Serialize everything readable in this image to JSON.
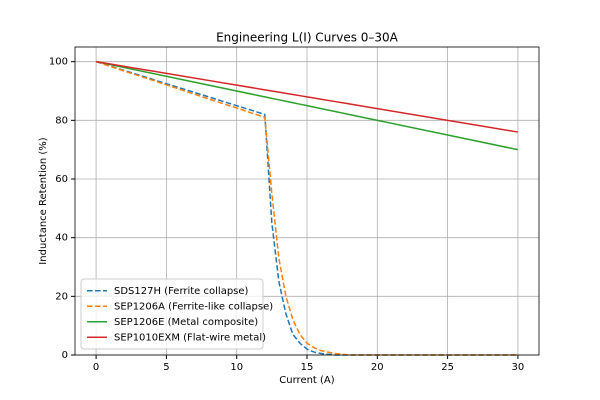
{
  "chart_data": {
    "type": "line",
    "title": "Engineering L(I) Curves 0–30A",
    "x_label": "Current (A)",
    "y_label": "Inductance Retention (%)",
    "x": [
      0,
      2,
      4,
      6,
      8,
      10,
      12,
      12.5,
      13,
      13.5,
      14,
      14.5,
      15,
      15.5,
      16,
      17,
      18,
      20,
      25,
      30
    ],
    "series": [
      {
        "name": "SDS127H (Ferrite collapse)",
        "color": "#1f77b4",
        "linestyle": "dashed",
        "values": [
          100,
          97,
          94,
          91,
          88,
          85,
          82,
          45,
          25,
          14,
          7,
          4,
          2,
          1,
          0.5,
          0,
          0,
          0,
          0,
          0
        ]
      },
      {
        "name": "SEP1206A (Ferrite-like collapse)",
        "color": "#ff7f0e",
        "linestyle": "dashed",
        "values": [
          100,
          96.8,
          93.7,
          90.5,
          87.3,
          84.2,
          81,
          55,
          33,
          20,
          12,
          7,
          4,
          2.5,
          1.5,
          0.5,
          0,
          0,
          0,
          0
        ]
      },
      {
        "name": "SEP1206E (Metal composite)",
        "color": "#2ca02c",
        "linestyle": "solid",
        "values": [
          100,
          98,
          96,
          94,
          92,
          90,
          88,
          87.5,
          87,
          86.5,
          86,
          85.5,
          85,
          84.5,
          84,
          83,
          82,
          80,
          75,
          70
        ]
      },
      {
        "name": "SEP1010EXM (Flat-wire metal)",
        "color": "#d62728",
        "linestyle": "solid",
        "values": [
          100,
          98.4,
          96.8,
          95.2,
          93.6,
          92,
          90.4,
          90,
          89.6,
          89.2,
          88.8,
          88.4,
          88,
          87.6,
          87.2,
          86.4,
          85.6,
          84,
          80,
          76
        ]
      }
    ],
    "xlim": [
      -1.5,
      31.5
    ],
    "ylim": [
      0,
      105
    ],
    "xticks": [
      0,
      5,
      10,
      15,
      20,
      25,
      30
    ],
    "yticks": [
      0,
      20,
      40,
      60,
      80,
      100
    ],
    "grid": true,
    "legend": "lower left"
  }
}
